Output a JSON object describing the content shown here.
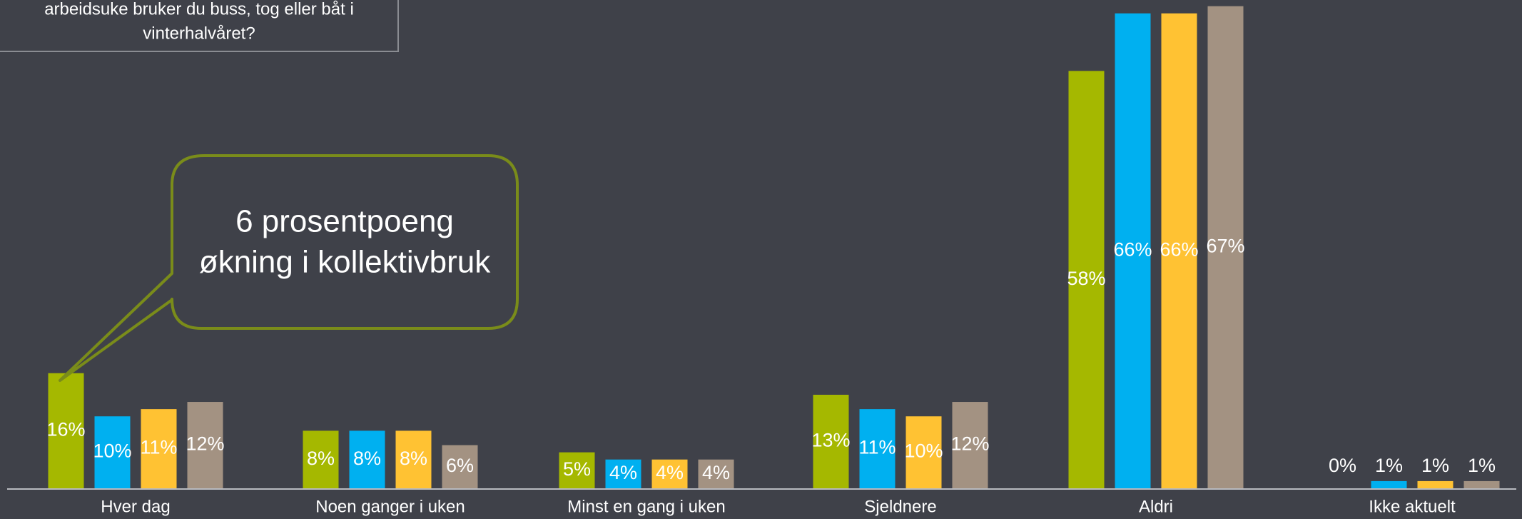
{
  "chart_data": {
    "type": "bar",
    "question": [
      "arbeidsuke bruker du buss, tog eller båt i",
      "vinterhalvåret?"
    ],
    "annotation": [
      "6 prosentpoeng",
      "økning i kollektivbruk"
    ],
    "categories": [
      "Hver dag",
      "Noen ganger i uken",
      "Minst en gang i uken",
      "Sjeldnere",
      "Aldri",
      "Ikke aktuelt"
    ],
    "series": [
      {
        "color": "#a5b800",
        "values": [
          16,
          8,
          5,
          13,
          58,
          0
        ],
        "value_labels": [
          "16%",
          "8%",
          "5%",
          "13%",
          "58%",
          "0%"
        ]
      },
      {
        "color": "#00b0f0",
        "values": [
          10,
          8,
          4,
          11,
          66,
          1
        ],
        "value_labels": [
          "10%",
          "8%",
          "4%",
          "11%",
          "66%",
          "1%"
        ]
      },
      {
        "color": "#ffc233",
        "values": [
          11,
          8,
          4,
          10,
          66,
          1
        ],
        "value_labels": [
          "11%",
          "8%",
          "4%",
          "10%",
          "66%",
          "1%"
        ]
      },
      {
        "color": "#a39282",
        "values": [
          12,
          6,
          4,
          12,
          67,
          1
        ],
        "value_labels": [
          "12%",
          "6%",
          "4%",
          "12%",
          "67%",
          "1%"
        ]
      }
    ]
  }
}
